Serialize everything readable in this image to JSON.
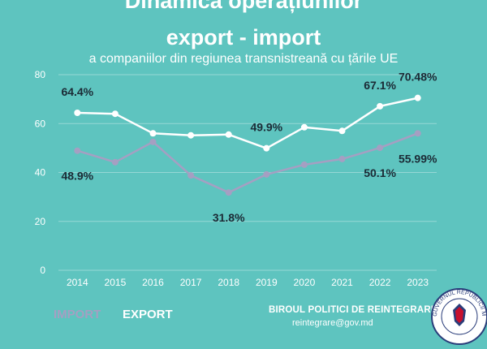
{
  "title_line1": "Dinamica operațiunilor",
  "title_line2": "export - import",
  "subtitle": "a companiilor din regiunea transnistreană cu țările UE",
  "chart_data": {
    "type": "line",
    "x": [
      "2014",
      "2015",
      "2016",
      "2017",
      "2018",
      "2019",
      "2020",
      "2021",
      "2022",
      "2023"
    ],
    "series": [
      {
        "name": "EXPORT",
        "color": "#ffffff",
        "values": [
          64.4,
          64.0,
          56.0,
          55.2,
          55.5,
          49.9,
          58.5,
          57.0,
          67.1,
          70.48
        ]
      },
      {
        "name": "IMPORT",
        "color": "#a59fc2",
        "values": [
          48.9,
          44.2,
          52.5,
          38.8,
          31.8,
          39.2,
          43.2,
          45.5,
          50.1,
          55.99
        ]
      }
    ],
    "ylim": [
      0,
      80
    ],
    "yticks": [
      0,
      20,
      40,
      60,
      80
    ],
    "grid": true,
    "annotations": [
      {
        "series": 0,
        "index": 0,
        "label": "64.4%"
      },
      {
        "series": 0,
        "index": 5,
        "label": "49.9%"
      },
      {
        "series": 0,
        "index": 8,
        "label": "67.1%"
      },
      {
        "series": 0,
        "index": 9,
        "label": "70.48%"
      },
      {
        "series": 1,
        "index": 0,
        "label": "48.9%"
      },
      {
        "series": 1,
        "index": 4,
        "label": "31.8%"
      },
      {
        "series": 1,
        "index": 8,
        "label": "50.1%"
      },
      {
        "series": 1,
        "index": 9,
        "label": "55.99%"
      }
    ]
  },
  "legend": {
    "import": "IMPORT",
    "export": "EXPORT"
  },
  "footer": {
    "organization": "BIROUL POLITICI DE REINTEGRARE",
    "email": "reintegrare@gov.md",
    "emblem_text": "GUVERNUL REPUBLICII MOLDOVA"
  },
  "colors": {
    "background": "#5ec4bf",
    "label_text": "#1b2a35",
    "export": "#ffffff",
    "import": "#a59fc2"
  }
}
